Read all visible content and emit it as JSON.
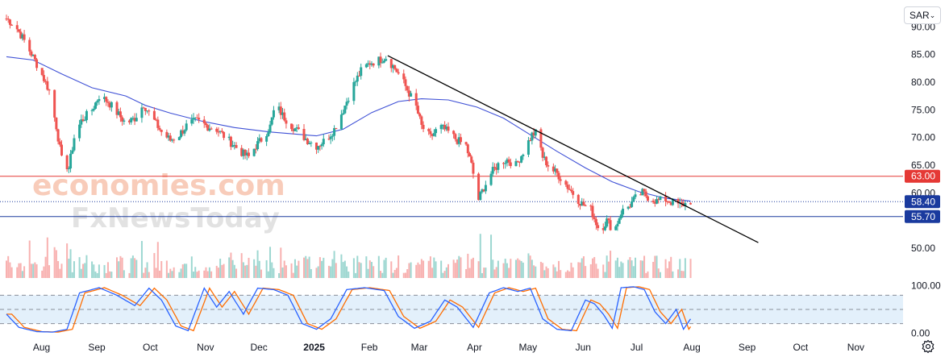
{
  "currency_selector": {
    "value": "SAR",
    "icon": "chevron-down-icon"
  },
  "settings": {
    "icon": "gear-icon"
  },
  "watermark": {
    "line1": "economies.com",
    "line2": "FxNewsToday"
  },
  "colors": {
    "up": "#26a69a",
    "down": "#ef5350",
    "ma": "#3f51d6",
    "resistance": "#e53935",
    "support": "#1a3a9e",
    "trendline": "#000000",
    "stoch_k": "#2962ff",
    "stoch_d": "#ff6d00",
    "stoch_band": "#e3f0fb"
  },
  "chart_data": [
    {
      "type": "candlestick",
      "y_axis": {
        "ticks": [
          "90.00",
          "85.00",
          "80.00",
          "75.00",
          "70.00",
          "65.00",
          "60.00",
          "50.00"
        ],
        "ylim": [
          44.6,
          93.4
        ]
      },
      "x_axis": {
        "ticks": [
          "Aug",
          "Sep",
          "Oct",
          "Nov",
          "Dec",
          "2025",
          "Feb",
          "Mar",
          "Apr",
          "May",
          "Jun",
          "Jul",
          "Aug",
          "Sep",
          "Oct",
          "Nov"
        ],
        "bold_ticks": [
          "2025"
        ]
      },
      "grid": false,
      "series": {
        "close_anchors": [
          [
            "2024-07-15",
            91.5
          ],
          [
            "2024-07-20",
            90.2
          ],
          [
            "2024-07-25",
            87.5
          ],
          [
            "2024-07-30",
            84.5
          ],
          [
            "2024-08-03",
            82.0
          ],
          [
            "2024-08-08",
            78.5
          ],
          [
            "2024-08-12",
            72.0
          ],
          [
            "2024-08-15",
            66.0
          ],
          [
            "2024-08-19",
            64.5
          ],
          [
            "2024-08-22",
            70.0
          ],
          [
            "2024-08-26",
            73.0
          ],
          [
            "2024-09-01",
            75.0
          ],
          [
            "2024-09-05",
            77.5
          ],
          [
            "2024-09-10",
            76.5
          ],
          [
            "2024-09-15",
            74.5
          ],
          [
            "2024-09-20",
            72.5
          ],
          [
            "2024-09-25",
            73.5
          ],
          [
            "2024-09-30",
            76.0
          ],
          [
            "2024-10-05",
            73.5
          ],
          [
            "2024-10-10",
            71.0
          ],
          [
            "2024-10-15",
            69.5
          ],
          [
            "2024-10-20",
            70.5
          ],
          [
            "2024-10-25",
            72.5
          ],
          [
            "2024-10-30",
            73.0
          ],
          [
            "2024-11-05",
            72.0
          ],
          [
            "2024-11-10",
            71.5
          ],
          [
            "2024-11-15",
            70.0
          ],
          [
            "2024-11-20",
            68.5
          ],
          [
            "2024-11-25",
            67.0
          ],
          [
            "2024-11-28",
            66.5
          ],
          [
            "2024-12-02",
            68.5
          ],
          [
            "2024-12-06",
            70.0
          ],
          [
            "2024-12-10",
            72.0
          ],
          [
            "2024-12-13",
            76.0
          ],
          [
            "2024-12-17",
            74.0
          ],
          [
            "2024-12-21",
            72.5
          ],
          [
            "2024-12-26",
            71.0
          ],
          [
            "2024-12-31",
            69.5
          ],
          [
            "2025-01-05",
            68.5
          ],
          [
            "2025-01-10",
            69.5
          ],
          [
            "2025-01-15",
            71.5
          ],
          [
            "2025-01-20",
            75.0
          ],
          [
            "2025-01-25",
            79.0
          ],
          [
            "2025-01-30",
            82.0
          ],
          [
            "2025-02-04",
            83.5
          ],
          [
            "2025-02-09",
            84.0
          ],
          [
            "2025-02-13",
            84.5
          ],
          [
            "2025-02-18",
            82.5
          ],
          [
            "2025-02-22",
            80.5
          ],
          [
            "2025-02-26",
            78.0
          ],
          [
            "2025-03-02",
            75.5
          ],
          [
            "2025-03-05",
            72.0
          ],
          [
            "2025-03-10",
            70.0
          ],
          [
            "2025-03-15",
            72.0
          ],
          [
            "2025-03-20",
            71.0
          ],
          [
            "2025-03-25",
            69.5
          ],
          [
            "2025-03-30",
            68.5
          ],
          [
            "2025-04-02",
            65.0
          ],
          [
            "2025-04-06",
            58.8
          ],
          [
            "2025-04-09",
            61.0
          ],
          [
            "2025-04-13",
            63.5
          ],
          [
            "2025-04-18",
            65.5
          ],
          [
            "2025-04-22",
            66.0
          ],
          [
            "2025-04-27",
            65.0
          ],
          [
            "2025-05-02",
            68.0
          ],
          [
            "2025-05-06",
            70.5
          ],
          [
            "2025-05-09",
            71.0
          ],
          [
            "2025-05-12",
            66.5
          ],
          [
            "2025-05-16",
            64.5
          ],
          [
            "2025-05-20",
            63.5
          ],
          [
            "2025-05-25",
            61.5
          ],
          [
            "2025-05-30",
            59.5
          ],
          [
            "2025-06-03",
            58.0
          ],
          [
            "2025-06-08",
            57.0
          ],
          [
            "2025-06-13",
            53.0
          ],
          [
            "2025-06-17",
            55.0
          ],
          [
            "2025-06-21",
            53.0
          ],
          [
            "2025-06-25",
            56.5
          ],
          [
            "2025-06-29",
            57.5
          ],
          [
            "2025-07-03",
            59.0
          ],
          [
            "2025-07-07",
            60.0
          ],
          [
            "2025-07-11",
            59.0
          ],
          [
            "2025-07-15",
            58.5
          ],
          [
            "2025-07-20",
            58.8
          ],
          [
            "2025-07-24",
            58.2
          ],
          [
            "2025-07-28",
            57.8
          ],
          [
            "2025-07-31",
            58.0
          ],
          [
            "2025-08-03",
            58.5
          ]
        ],
        "moving_average": [
          [
            "2024-07-15",
            84.6
          ],
          [
            "2024-07-30",
            84.0
          ],
          [
            "2024-08-15",
            81.5
          ],
          [
            "2024-09-01",
            79.0
          ],
          [
            "2024-09-20",
            77.5
          ],
          [
            "2024-10-01",
            75.8
          ],
          [
            "2024-10-15",
            74.4
          ],
          [
            "2024-11-01",
            73.0
          ],
          [
            "2024-11-20",
            71.8
          ],
          [
            "2024-12-10",
            71.0
          ],
          [
            "2025-01-05",
            70.3
          ],
          [
            "2025-01-20",
            71.5
          ],
          [
            "2025-02-05",
            74.5
          ],
          [
            "2025-02-20",
            76.5
          ],
          [
            "2025-03-05",
            77.0
          ],
          [
            "2025-03-20",
            76.8
          ],
          [
            "2025-04-05",
            75.5
          ],
          [
            "2025-04-20",
            73.5
          ],
          [
            "2025-05-05",
            70.5
          ],
          [
            "2025-05-20",
            67.5
          ],
          [
            "2025-06-05",
            64.5
          ],
          [
            "2025-06-20",
            62.0
          ],
          [
            "2025-07-05",
            60.2
          ],
          [
            "2025-07-20",
            59.0
          ],
          [
            "2025-08-03",
            58.5
          ]
        ]
      },
      "horizontal_lines": [
        {
          "label": "63.00",
          "value": 63.0,
          "style": "solid",
          "color": "#e53935"
        },
        {
          "label": "58.40",
          "value": 58.4,
          "style": "dotted",
          "color": "#1a3a9e"
        },
        {
          "label": "55.70",
          "value": 55.7,
          "style": "solid",
          "color": "#1a3a9e"
        }
      ],
      "trendline": {
        "points": [
          [
            "2025-02-14",
            84.8
          ],
          [
            "2025-09-10",
            51.0
          ]
        ]
      }
    },
    {
      "type": "line",
      "name_printed": false,
      "y_axis": {
        "ticks": [
          "100.00",
          "0.00"
        ],
        "ylim": [
          -8,
          108
        ]
      },
      "band": [
        20,
        80
      ],
      "midline": 50,
      "series": [
        {
          "role": "k",
          "anchors": [
            [
              "2024-07-15",
              40
            ],
            [
              "2024-07-22",
              12
            ],
            [
              "2024-08-01",
              3
            ],
            [
              "2024-08-10",
              2
            ],
            [
              "2024-08-18",
              8
            ],
            [
              "2024-08-25",
              85
            ],
            [
              "2024-09-05",
              96
            ],
            [
              "2024-09-15",
              80
            ],
            [
              "2024-09-25",
              58
            ],
            [
              "2024-10-03",
              95
            ],
            [
              "2024-10-10",
              70
            ],
            [
              "2024-10-18",
              15
            ],
            [
              "2024-10-25",
              5
            ],
            [
              "2024-11-03",
              95
            ],
            [
              "2024-11-10",
              55
            ],
            [
              "2024-11-17",
              88
            ],
            [
              "2024-11-25",
              40
            ],
            [
              "2024-12-03",
              95
            ],
            [
              "2024-12-12",
              92
            ],
            [
              "2024-12-20",
              80
            ],
            [
              "2024-12-28",
              20
            ],
            [
              "2025-01-05",
              8
            ],
            [
              "2025-01-13",
              30
            ],
            [
              "2025-01-22",
              92
            ],
            [
              "2025-02-01",
              96
            ],
            [
              "2025-02-12",
              90
            ],
            [
              "2025-02-20",
              35
            ],
            [
              "2025-03-01",
              10
            ],
            [
              "2025-03-10",
              25
            ],
            [
              "2025-03-18",
              70
            ],
            [
              "2025-03-25",
              55
            ],
            [
              "2025-04-03",
              12
            ],
            [
              "2025-04-12",
              85
            ],
            [
              "2025-04-20",
              96
            ],
            [
              "2025-04-28",
              88
            ],
            [
              "2025-05-05",
              95
            ],
            [
              "2025-05-12",
              30
            ],
            [
              "2025-05-20",
              8
            ],
            [
              "2025-05-28",
              5
            ],
            [
              "2025-06-05",
              70
            ],
            [
              "2025-06-10",
              62
            ],
            [
              "2025-06-15",
              40
            ],
            [
              "2025-06-20",
              10
            ],
            [
              "2025-06-25",
              96
            ],
            [
              "2025-07-02",
              98
            ],
            [
              "2025-07-08",
              92
            ],
            [
              "2025-07-14",
              45
            ],
            [
              "2025-07-20",
              20
            ],
            [
              "2025-07-26",
              50
            ],
            [
              "2025-07-30",
              8
            ],
            [
              "2025-08-03",
              30
            ]
          ]
        },
        {
          "role": "d",
          "lag_days": 3
        }
      ]
    }
  ]
}
